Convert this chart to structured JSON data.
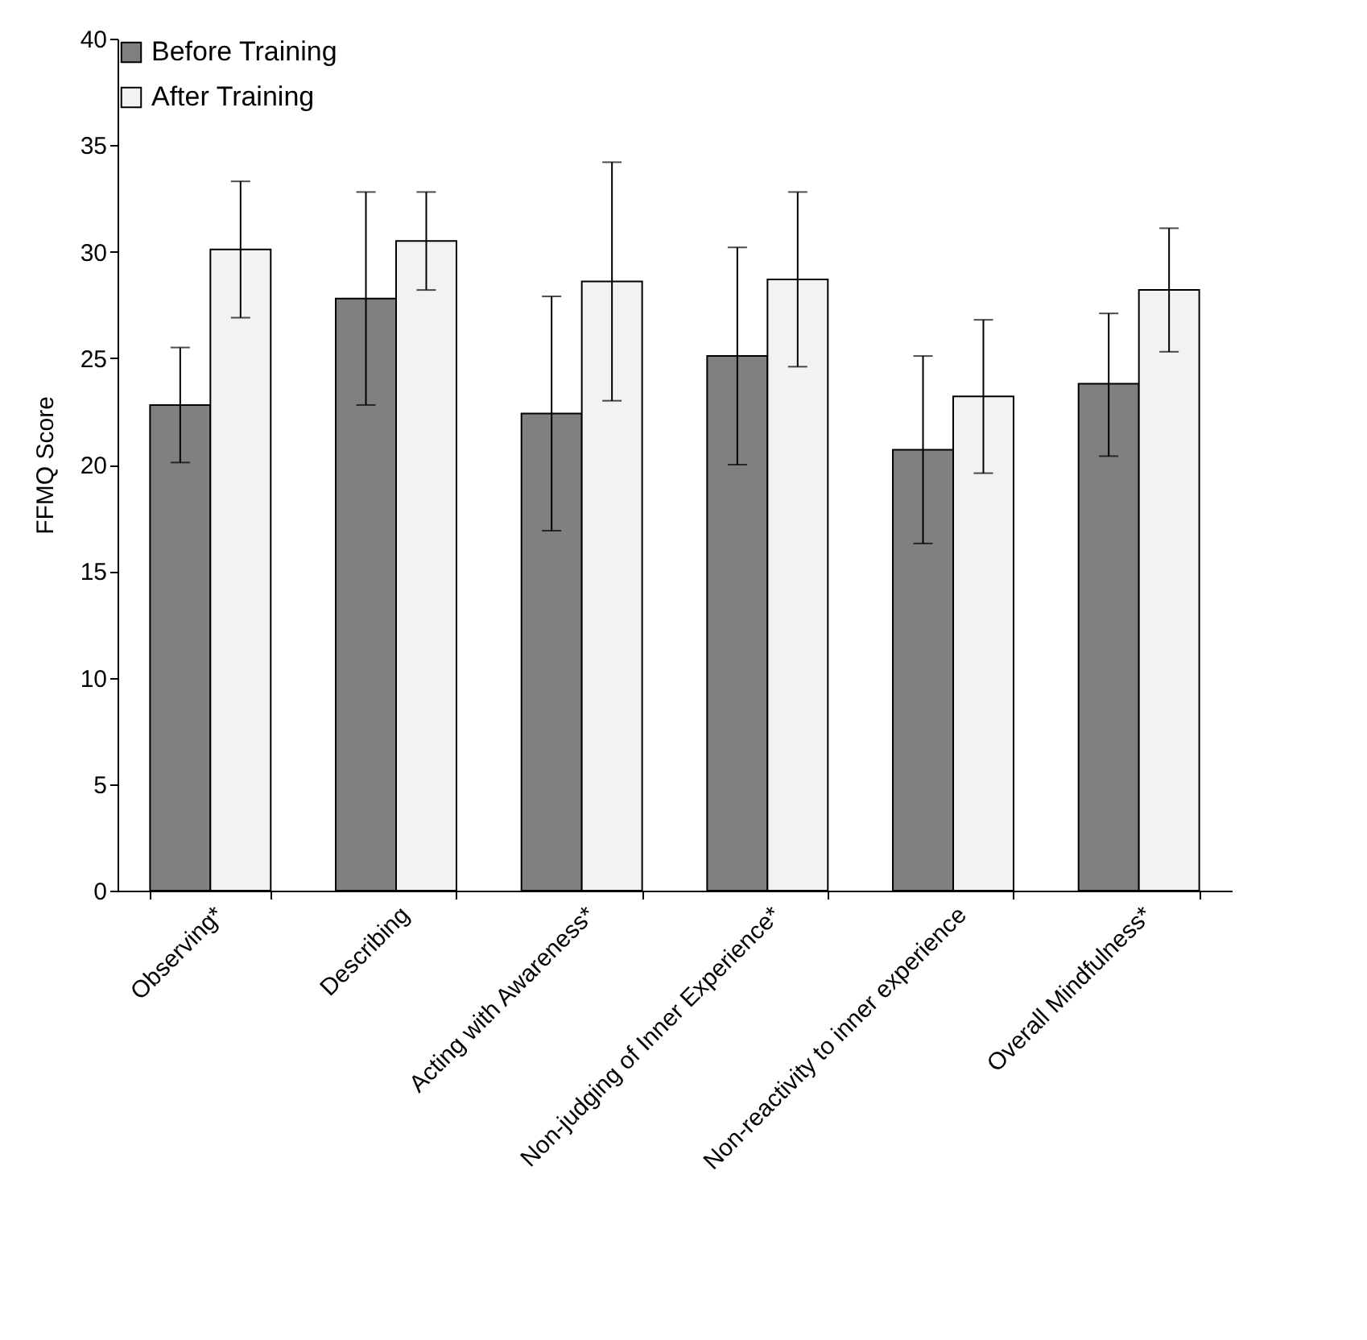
{
  "chart_data": {
    "type": "bar",
    "ylabel": "FFMQ Score",
    "categories": [
      "Observing*",
      "Describing",
      "Acting with Awareness*",
      "Non-judging of Inner Experience*",
      "Non-reactivity to inner experience",
      "Overall Mindfulness*"
    ],
    "series": [
      {
        "name": "Before Training",
        "color": "#808080",
        "values": [
          22.8,
          27.8,
          22.4,
          25.1,
          20.7,
          23.8
        ],
        "errors": [
          [
            20.1,
            25.5
          ],
          [
            22.8,
            32.8
          ],
          [
            16.9,
            27.9
          ],
          [
            20.0,
            30.2
          ],
          [
            16.3,
            25.1
          ],
          [
            20.4,
            27.1
          ]
        ]
      },
      {
        "name": "After Training",
        "color": "#f2f2f2",
        "values": [
          30.1,
          30.5,
          28.6,
          28.7,
          23.2,
          28.2
        ],
        "errors": [
          [
            26.9,
            33.3
          ],
          [
            28.2,
            32.8
          ],
          [
            23.0,
            34.2
          ],
          [
            24.6,
            32.8
          ],
          [
            19.6,
            26.8
          ],
          [
            25.3,
            31.1
          ]
        ]
      }
    ],
    "ylim": [
      0,
      40
    ],
    "yticks": [
      0,
      5,
      10,
      15,
      20,
      25,
      30,
      35,
      40
    ],
    "grid": false,
    "legend": "top left"
  }
}
